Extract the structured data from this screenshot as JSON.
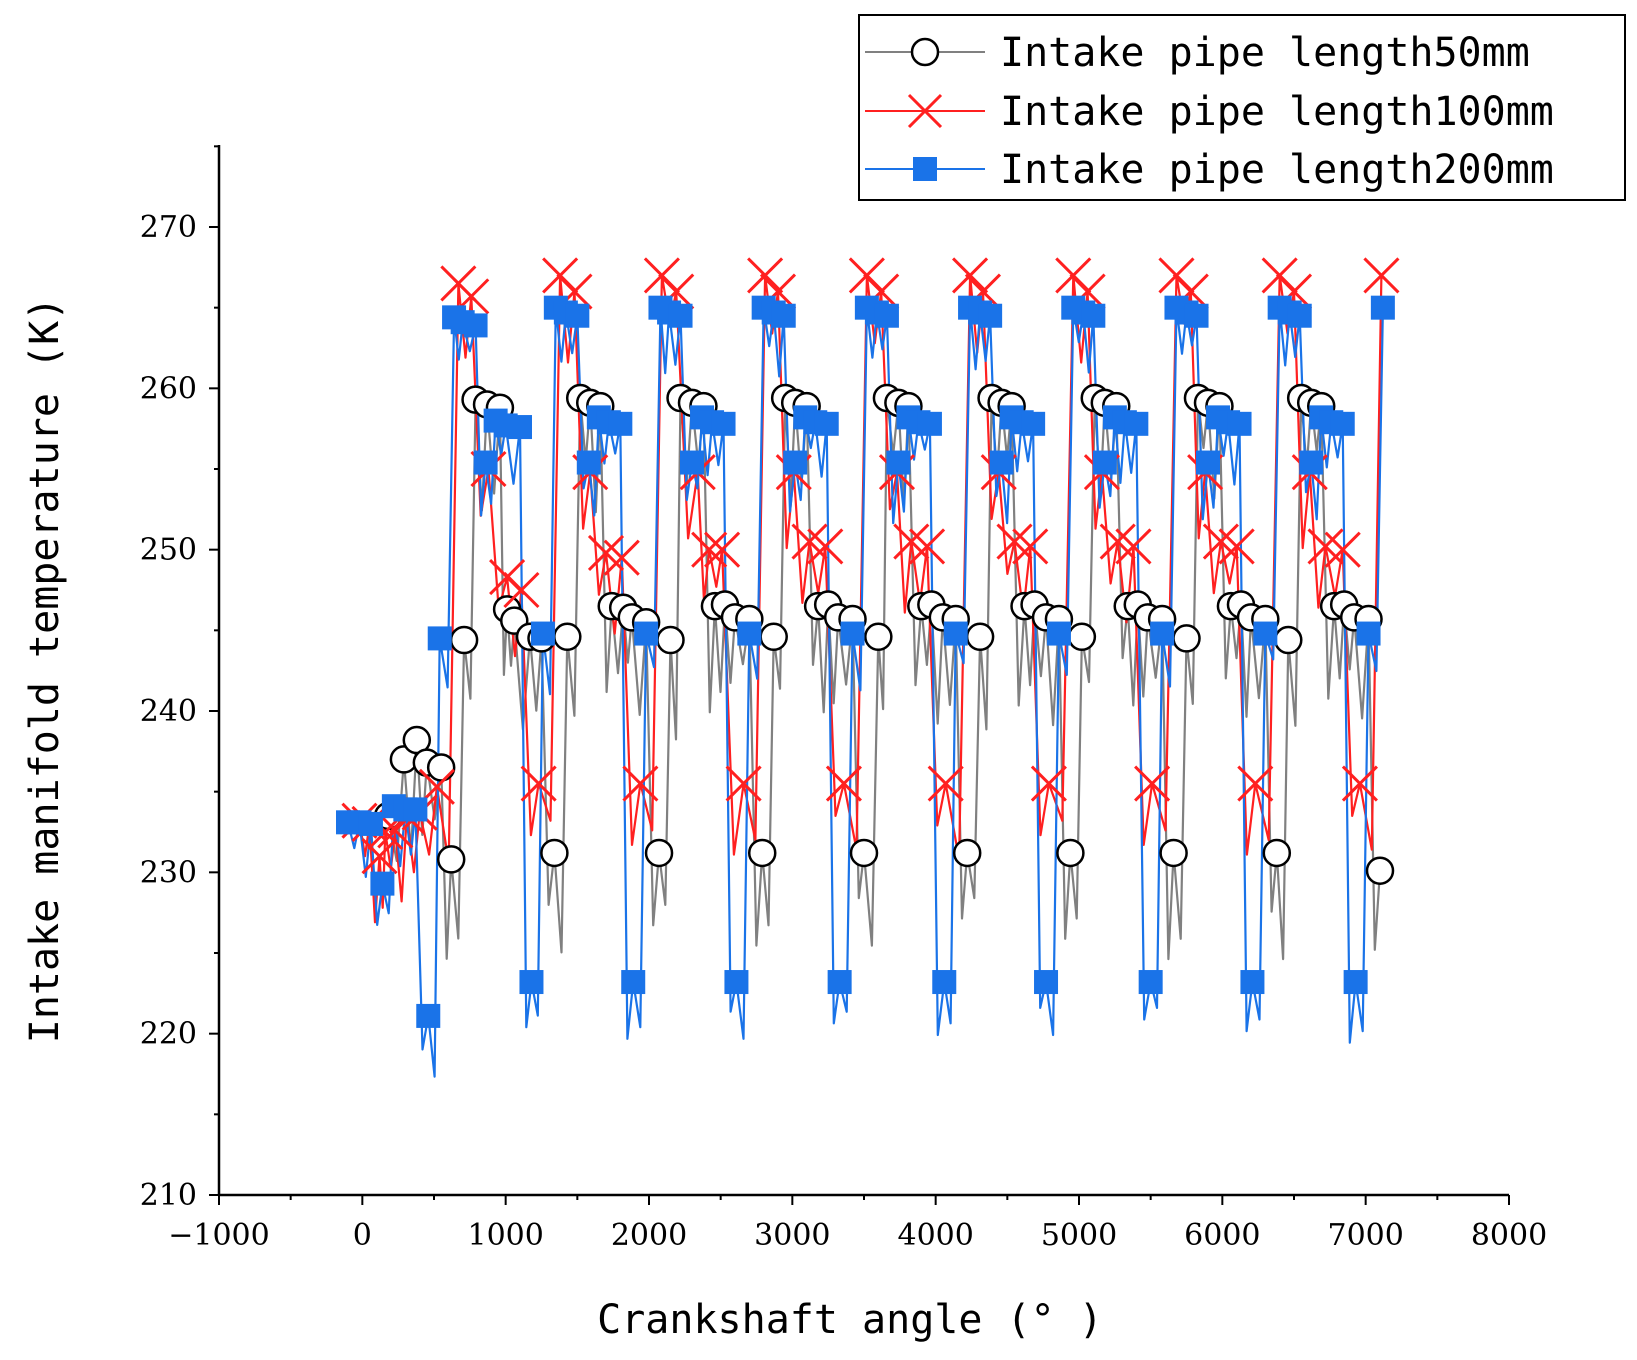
{
  "chart_data": {
    "type": "line",
    "xlabel": "Crankshaft angle (° )",
    "ylabel": "Intake manifold temperature (K)",
    "xlim": [
      -1000,
      8000
    ],
    "ylim": [
      210,
      275
    ],
    "xticks": [
      -1000,
      0,
      1000,
      2000,
      3000,
      4000,
      5000,
      6000,
      7000,
      8000
    ],
    "xtick_labels": [
      "−1000",
      "0",
      "1000",
      "2000",
      "3000",
      "4000",
      "5000",
      "6000",
      "7000",
      "8000"
    ],
    "yticks": [
      210,
      220,
      230,
      240,
      250,
      260,
      270
    ],
    "ytick_labels": [
      "210",
      "220",
      "230",
      "240",
      "250",
      "260",
      "270"
    ],
    "legend_position": "top-right",
    "cycle_length": 720,
    "series": [
      {
        "name": "Intake pipe length50mm",
        "color": "#808080",
        "marker": "circle",
        "markers": [
          [
            180,
            233.5
          ],
          [
            290,
            237.0
          ],
          [
            380,
            238.2
          ],
          [
            450,
            236.8
          ],
          [
            550,
            236.5
          ],
          [
            620,
            230.8
          ],
          [
            710,
            244.4
          ],
          [
            790,
            259.3
          ],
          [
            870,
            259.0
          ],
          [
            960,
            258.8
          ],
          [
            1010,
            246.3
          ],
          [
            1060,
            245.6
          ],
          [
            1170,
            244.6
          ],
          [
            1250,
            244.5
          ],
          [
            1340,
            231.2
          ],
          [
            1430,
            244.6
          ],
          [
            1520,
            259.4
          ],
          [
            1590,
            259.1
          ],
          [
            1660,
            258.9
          ],
          [
            1740,
            246.5
          ],
          [
            1820,
            246.4
          ],
          [
            1880,
            245.8
          ],
          [
            1980,
            245.5
          ],
          [
            2070,
            231.2
          ],
          [
            2150,
            244.4
          ],
          [
            2220,
            259.4
          ],
          [
            2300,
            259.1
          ],
          [
            2380,
            258.9
          ],
          [
            2460,
            246.5
          ],
          [
            2530,
            246.6
          ],
          [
            2600,
            245.8
          ],
          [
            2700,
            245.7
          ],
          [
            2790,
            231.2
          ],
          [
            2870,
            244.6
          ],
          [
            2950,
            259.4
          ],
          [
            3020,
            259.1
          ],
          [
            3100,
            258.9
          ],
          [
            3180,
            246.5
          ],
          [
            3250,
            246.6
          ],
          [
            3320,
            245.8
          ],
          [
            3420,
            245.7
          ],
          [
            3500,
            231.2
          ],
          [
            3600,
            244.6
          ],
          [
            3660,
            259.4
          ],
          [
            3740,
            259.1
          ],
          [
            3810,
            258.9
          ],
          [
            3900,
            246.5
          ],
          [
            3970,
            246.6
          ],
          [
            4050,
            245.8
          ],
          [
            4140,
            245.7
          ],
          [
            4220,
            231.2
          ],
          [
            4310,
            244.6
          ],
          [
            4390,
            259.4
          ],
          [
            4460,
            259.1
          ],
          [
            4530,
            258.9
          ],
          [
            4620,
            246.5
          ],
          [
            4690,
            246.6
          ],
          [
            4770,
            245.8
          ],
          [
            4860,
            245.7
          ],
          [
            4940,
            231.2
          ],
          [
            5020,
            244.6
          ],
          [
            5110,
            259.4
          ],
          [
            5180,
            259.1
          ],
          [
            5260,
            258.9
          ],
          [
            5340,
            246.5
          ],
          [
            5410,
            246.6
          ],
          [
            5480,
            245.8
          ],
          [
            5580,
            245.7
          ],
          [
            5660,
            231.2
          ],
          [
            5750,
            244.5
          ],
          [
            5830,
            259.4
          ],
          [
            5900,
            259.1
          ],
          [
            5980,
            258.9
          ],
          [
            6060,
            246.5
          ],
          [
            6130,
            246.6
          ],
          [
            6200,
            245.8
          ],
          [
            6300,
            245.7
          ],
          [
            6380,
            231.2
          ],
          [
            6460,
            244.4
          ],
          [
            6550,
            259.4
          ],
          [
            6620,
            259.1
          ],
          [
            6690,
            258.9
          ],
          [
            6780,
            246.5
          ],
          [
            6850,
            246.6
          ],
          [
            6920,
            245.8
          ],
          [
            7020,
            245.7
          ],
          [
            7100,
            230.1
          ]
        ]
      },
      {
        "name": "Intake pipe length100mm",
        "color": "#ff2020",
        "marker": "cross",
        "markers": [
          [
            -20,
            233.2
          ],
          [
            50,
            233.0
          ],
          [
            120,
            231.0
          ],
          [
            160,
            232.5
          ],
          [
            230,
            232.6
          ],
          [
            310,
            233.5
          ],
          [
            400,
            233.7
          ],
          [
            520,
            235.3
          ],
          [
            670,
            266.5
          ],
          [
            760,
            265.7
          ],
          [
            880,
            255.0
          ],
          [
            1010,
            248.3
          ],
          [
            1110,
            247.5
          ],
          [
            1230,
            235.5
          ],
          [
            1380,
            267.0
          ],
          [
            1480,
            266.0
          ],
          [
            1590,
            254.8
          ],
          [
            1700,
            249.8
          ],
          [
            1810,
            249.5
          ],
          [
            1940,
            235.5
          ],
          [
            2090,
            267.0
          ],
          [
            2190,
            266.0
          ],
          [
            2340,
            254.8
          ],
          [
            2420,
            250.0
          ],
          [
            2510,
            250.0
          ],
          [
            2660,
            235.5
          ],
          [
            2810,
            267.0
          ],
          [
            2900,
            266.0
          ],
          [
            3010,
            254.8
          ],
          [
            3120,
            250.5
          ],
          [
            3230,
            250.2
          ],
          [
            3360,
            235.5
          ],
          [
            3520,
            267.0
          ],
          [
            3620,
            266.0
          ],
          [
            3730,
            254.8
          ],
          [
            3830,
            250.5
          ],
          [
            3940,
            250.2
          ],
          [
            4070,
            235.5
          ],
          [
            4240,
            267.0
          ],
          [
            4330,
            266.0
          ],
          [
            4440,
            254.8
          ],
          [
            4550,
            250.5
          ],
          [
            4660,
            250.2
          ],
          [
            4790,
            235.5
          ],
          [
            4960,
            267.0
          ],
          [
            5060,
            266.0
          ],
          [
            5160,
            254.8
          ],
          [
            5270,
            250.5
          ],
          [
            5380,
            250.2
          ],
          [
            5510,
            235.5
          ],
          [
            5680,
            267.0
          ],
          [
            5780,
            266.0
          ],
          [
            5880,
            254.8
          ],
          [
            5990,
            250.5
          ],
          [
            6100,
            250.2
          ],
          [
            6230,
            235.5
          ],
          [
            6400,
            267.0
          ],
          [
            6500,
            266.0
          ],
          [
            6610,
            254.8
          ],
          [
            6720,
            250.2
          ],
          [
            6840,
            250.0
          ],
          [
            6960,
            235.5
          ],
          [
            7110,
            267.0
          ]
        ]
      },
      {
        "name": "Intake pipe length200mm",
        "color": "#1a73e8",
        "marker": "square",
        "markers": [
          [
            -100,
            233.1
          ],
          [
            -20,
            233.1
          ],
          [
            60,
            233.0
          ],
          [
            140,
            229.3
          ],
          [
            220,
            234.1
          ],
          [
            300,
            233.9
          ],
          [
            370,
            233.9
          ],
          [
            460,
            221.1
          ],
          [
            540,
            244.5
          ],
          [
            640,
            264.4
          ],
          [
            700,
            264.1
          ],
          [
            790,
            263.9
          ],
          [
            860,
            255.4
          ],
          [
            930,
            258.0
          ],
          [
            1000,
            257.7
          ],
          [
            1100,
            257.6
          ],
          [
            1180,
            223.2
          ],
          [
            1260,
            244.8
          ],
          [
            1350,
            265.0
          ],
          [
            1420,
            264.7
          ],
          [
            1500,
            264.5
          ],
          [
            1580,
            255.4
          ],
          [
            1650,
            258.2
          ],
          [
            1720,
            257.9
          ],
          [
            1800,
            257.8
          ],
          [
            1890,
            223.2
          ],
          [
            1980,
            244.8
          ],
          [
            2080,
            265.0
          ],
          [
            2140,
            264.7
          ],
          [
            2220,
            264.5
          ],
          [
            2300,
            255.4
          ],
          [
            2370,
            258.2
          ],
          [
            2440,
            257.9
          ],
          [
            2520,
            257.8
          ],
          [
            2610,
            223.2
          ],
          [
            2700,
            244.8
          ],
          [
            2800,
            265.0
          ],
          [
            2870,
            264.7
          ],
          [
            2940,
            264.5
          ],
          [
            3020,
            255.4
          ],
          [
            3090,
            258.2
          ],
          [
            3160,
            257.9
          ],
          [
            3240,
            257.8
          ],
          [
            3330,
            223.2
          ],
          [
            3420,
            244.8
          ],
          [
            3520,
            265.0
          ],
          [
            3590,
            264.7
          ],
          [
            3660,
            264.5
          ],
          [
            3740,
            255.4
          ],
          [
            3810,
            258.2
          ],
          [
            3880,
            257.9
          ],
          [
            3960,
            257.8
          ],
          [
            4060,
            223.2
          ],
          [
            4140,
            244.8
          ],
          [
            4240,
            265.0
          ],
          [
            4310,
            264.7
          ],
          [
            4380,
            264.5
          ],
          [
            4460,
            255.4
          ],
          [
            4530,
            258.2
          ],
          [
            4600,
            257.9
          ],
          [
            4680,
            257.8
          ],
          [
            4770,
            223.2
          ],
          [
            4860,
            244.8
          ],
          [
            4960,
            265.0
          ],
          [
            5030,
            264.7
          ],
          [
            5100,
            264.5
          ],
          [
            5180,
            255.4
          ],
          [
            5250,
            258.2
          ],
          [
            5320,
            257.9
          ],
          [
            5400,
            257.8
          ],
          [
            5500,
            223.2
          ],
          [
            5580,
            244.8
          ],
          [
            5680,
            265.0
          ],
          [
            5750,
            264.7
          ],
          [
            5820,
            264.5
          ],
          [
            5900,
            255.4
          ],
          [
            5970,
            258.2
          ],
          [
            6040,
            257.9
          ],
          [
            6120,
            257.8
          ],
          [
            6210,
            223.2
          ],
          [
            6300,
            244.8
          ],
          [
            6400,
            265.0
          ],
          [
            6470,
            264.7
          ],
          [
            6540,
            264.5
          ],
          [
            6620,
            255.4
          ],
          [
            6690,
            258.2
          ],
          [
            6760,
            257.9
          ],
          [
            6840,
            257.8
          ],
          [
            6930,
            223.2
          ],
          [
            7020,
            244.8
          ],
          [
            7120,
            265.0
          ]
        ]
      }
    ]
  }
}
